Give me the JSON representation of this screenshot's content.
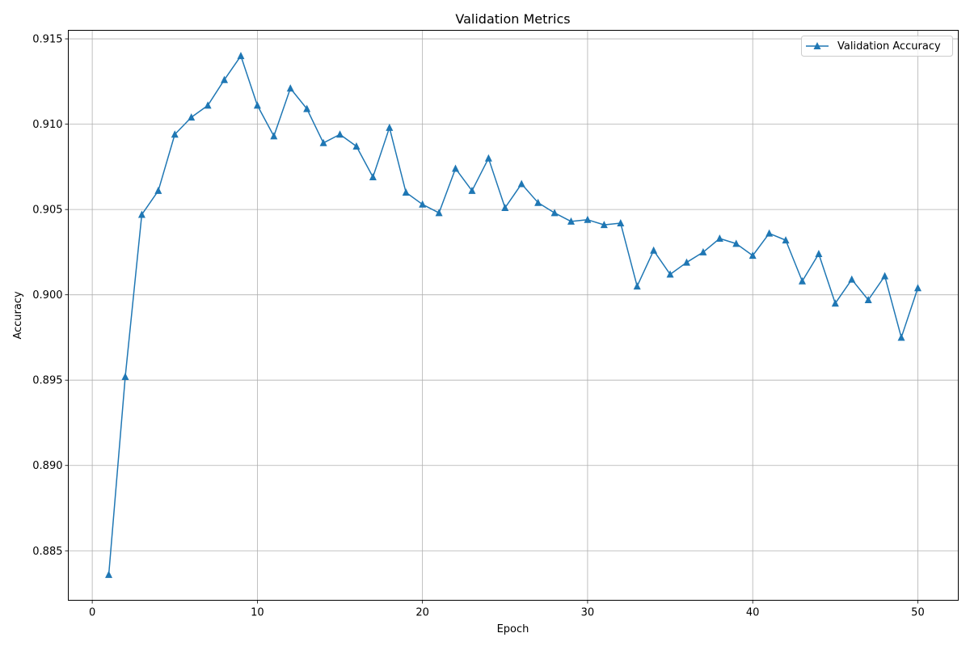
{
  "chart_data": {
    "type": "line",
    "title": "Validation Metrics",
    "xlabel": "Epoch",
    "ylabel": "Accuracy",
    "xlim": [
      -1.45,
      52.45
    ],
    "ylim": [
      0.8821,
      0.9155
    ],
    "x_ticks": [
      0,
      10,
      20,
      30,
      40,
      50
    ],
    "x_tick_labels": [
      "0",
      "10",
      "20",
      "30",
      "40",
      "50"
    ],
    "y_ticks": [
      0.885,
      0.89,
      0.895,
      0.9,
      0.905,
      0.91,
      0.915
    ],
    "y_tick_labels": [
      "0.885",
      "0.890",
      "0.895",
      "0.900",
      "0.905",
      "0.910",
      "0.915"
    ],
    "grid": true,
    "legend_position": "top-right",
    "series": [
      {
        "name": "Validation Accuracy",
        "color": "#1f77b4",
        "marker": "triangle-up",
        "x": [
          1,
          2,
          3,
          4,
          5,
          6,
          7,
          8,
          9,
          10,
          11,
          12,
          13,
          14,
          15,
          16,
          17,
          18,
          19,
          20,
          21,
          22,
          23,
          24,
          25,
          26,
          27,
          28,
          29,
          30,
          31,
          32,
          33,
          34,
          35,
          36,
          37,
          38,
          39,
          40,
          41,
          42,
          43,
          44,
          45,
          46,
          47,
          48,
          49,
          50
        ],
        "values": [
          0.8836,
          0.8952,
          0.9047,
          0.9061,
          0.9094,
          0.9104,
          0.9111,
          0.9126,
          0.914,
          0.9111,
          0.9093,
          0.9121,
          0.9109,
          0.9089,
          0.9094,
          0.9087,
          0.9069,
          0.9098,
          0.906,
          0.9053,
          0.9048,
          0.9074,
          0.9061,
          0.908,
          0.9051,
          0.9065,
          0.9054,
          0.9048,
          0.9043,
          0.9044,
          0.9041,
          0.9042,
          0.9005,
          0.9026,
          0.9012,
          0.9019,
          0.9025,
          0.9033,
          0.903,
          0.9023,
          0.9036,
          0.9032,
          0.9008,
          0.9024,
          0.8995,
          0.9009,
          0.8997,
          0.9011,
          0.8975,
          0.9004
        ]
      }
    ]
  }
}
